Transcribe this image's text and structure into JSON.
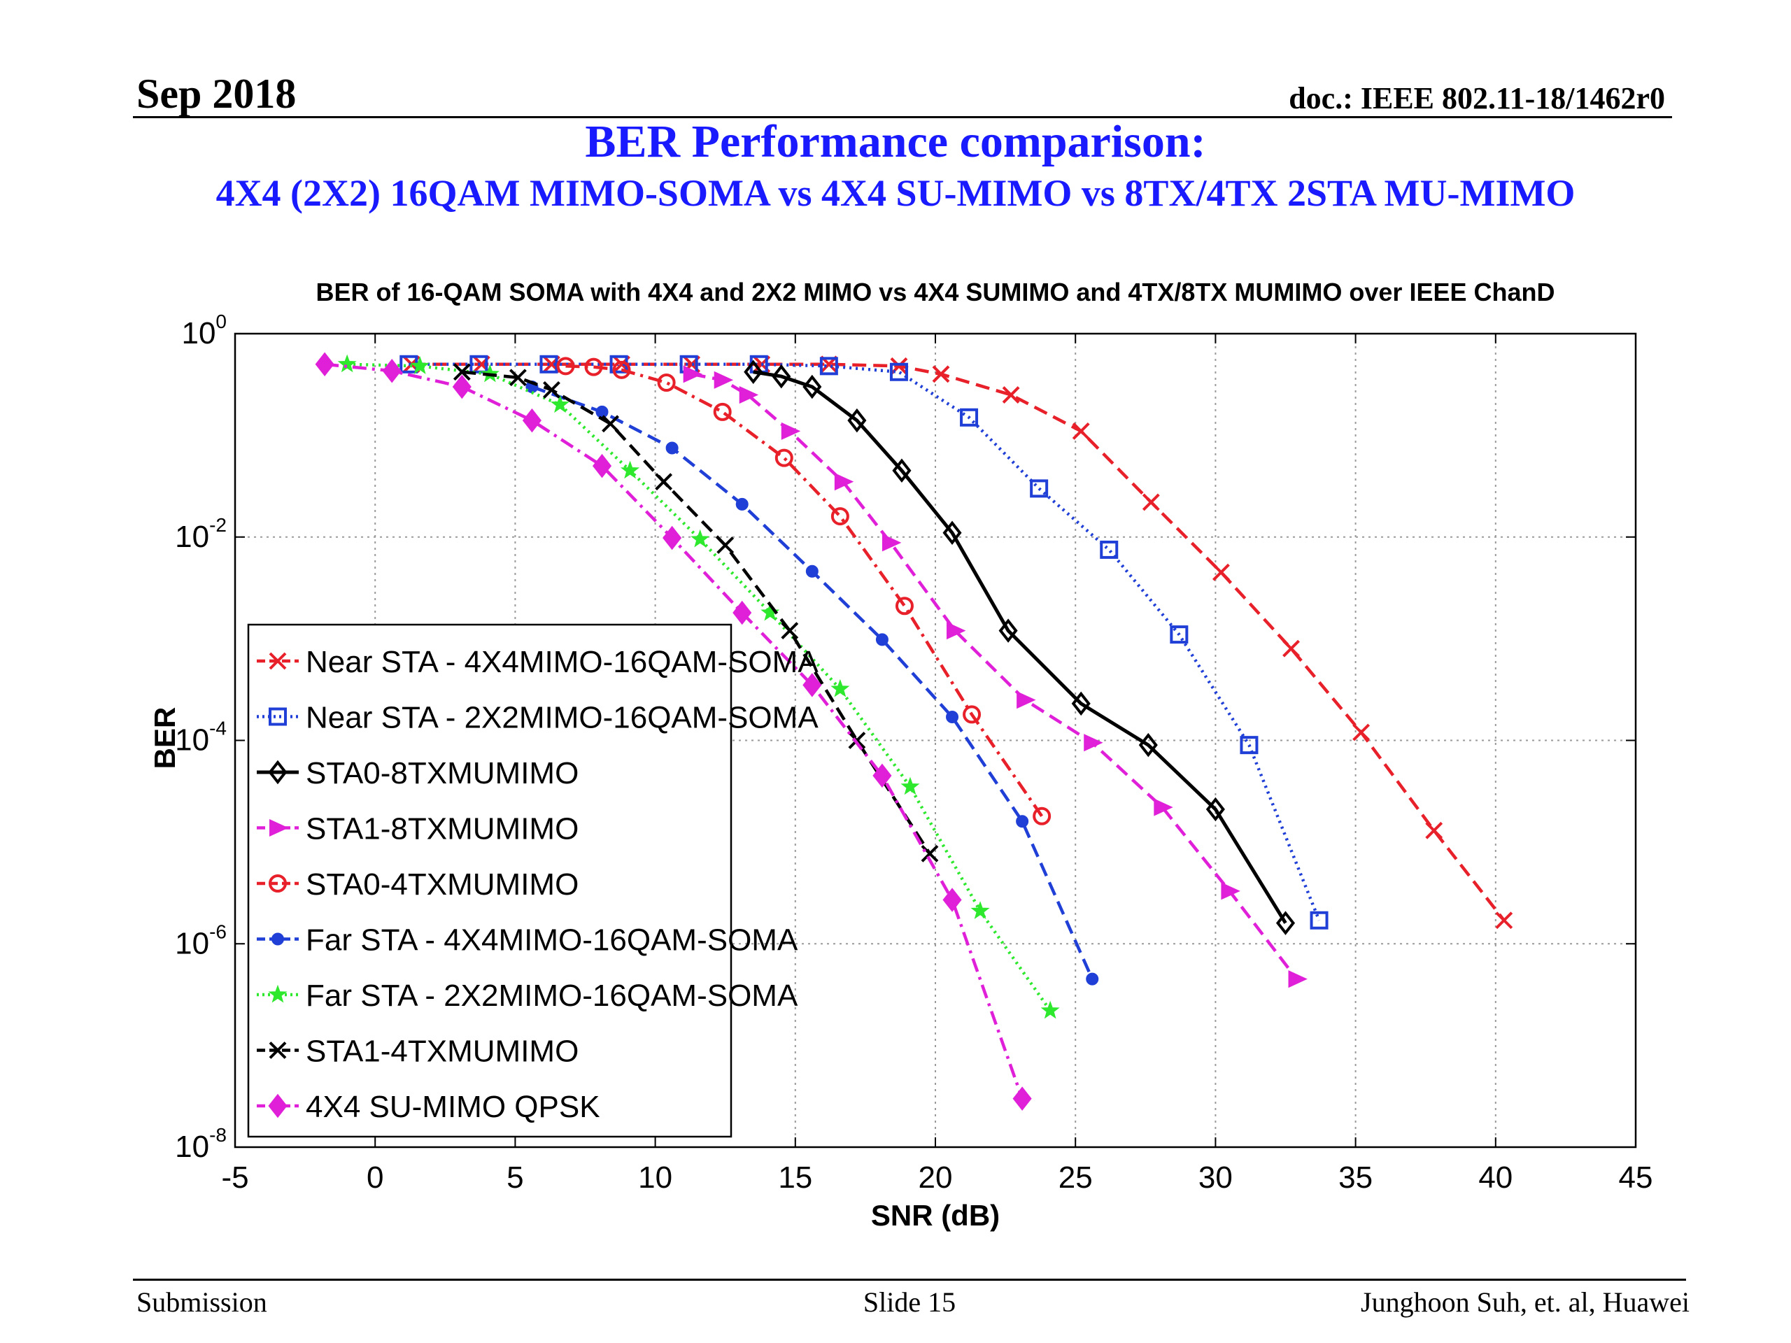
{
  "header": {
    "date": "Sep 2018",
    "doc": "doc.: IEEE 802.11-18/1462r0"
  },
  "slide": {
    "title": "BER Performance comparison:",
    "subtitle": "4X4 (2X2) 16QAM MIMO-SOMA vs 4X4 SU-MIMO vs 8TX/4TX 2STA MU-MIMO"
  },
  "footer": {
    "left": "Submission",
    "center": "Slide 15",
    "right": "Junghoon Suh, et. al, Huawei"
  },
  "chart_data": {
    "type": "line",
    "title": "BER of 16-QAM SOMA with 4X4 and 2X2 MIMO vs 4X4 SUMIMO and 4TX/8TX MUMIMO over IEEE ChanD",
    "xlabel": "SNR (dB)",
    "ylabel": "BER",
    "xlim": [
      -5,
      45
    ],
    "ylim": [
      1e-08,
      1
    ],
    "yscale": "log",
    "grid": true,
    "legend_position": "lower-left",
    "xticks": [
      "-5",
      "0",
      "5",
      "10",
      "15",
      "20",
      "25",
      "30",
      "35",
      "40",
      "45"
    ],
    "yticks": [
      {
        "base": "10",
        "exp": "0"
      },
      {
        "base": "10",
        "exp": "-2"
      },
      {
        "base": "10",
        "exp": "-4"
      },
      {
        "base": "10",
        "exp": "-6"
      },
      {
        "base": "10",
        "exp": "-8"
      }
    ],
    "series": [
      {
        "name": "Near STA - 4X4MIMO-16QAM-SOMA",
        "color": "#e8202a",
        "dash": "dashed",
        "marker": "x",
        "x": [
          1.3,
          3.8,
          6.3,
          8.8,
          11.3,
          13.8,
          16.2,
          18.7,
          20.2,
          22.7,
          25.2,
          27.7,
          30.2,
          32.7,
          35.2,
          37.8,
          40.3
        ],
        "y": [
          0.5,
          0.5,
          0.5,
          0.5,
          0.5,
          0.5,
          0.5,
          0.48,
          0.4,
          0.25,
          0.11,
          0.022,
          0.0045,
          0.0008,
          0.00012,
          1.3e-05,
          1.7e-06
        ]
      },
      {
        "name": "Near STA - 2X2MIMO-16QAM-SOMA",
        "color": "#1f3fd6",
        "dash": "dotted",
        "marker": "square",
        "x": [
          1.2,
          3.7,
          6.2,
          8.7,
          11.2,
          13.7,
          16.2,
          18.7,
          21.2,
          23.7,
          26.2,
          28.7,
          31.2,
          33.7
        ],
        "y": [
          0.5,
          0.5,
          0.5,
          0.5,
          0.5,
          0.5,
          0.48,
          0.42,
          0.15,
          0.03,
          0.0075,
          0.0011,
          9e-05,
          1.7e-06
        ]
      },
      {
        "name": "STA0-8TXMUMIMO",
        "color": "#000000",
        "dash": "solid",
        "marker": "diamond",
        "x": [
          13.5,
          14.5,
          15.6,
          17.2,
          18.8,
          20.6,
          22.6,
          25.2,
          27.6,
          30,
          32.5
        ],
        "y": [
          0.42,
          0.38,
          0.3,
          0.14,
          0.045,
          0.011,
          0.0012,
          0.00023,
          9e-05,
          2.1e-05,
          1.6e-06
        ]
      },
      {
        "name": "STA1-8TXMUMIMO",
        "color": "#e020d8",
        "dash": "dashed",
        "marker": "triangle-right",
        "x": [
          11.3,
          12.4,
          13.3,
          14.8,
          16.7,
          18.4,
          20.7,
          23.2,
          25.6,
          28.1,
          30.5,
          32.9
        ],
        "y": [
          0.4,
          0.35,
          0.25,
          0.11,
          0.035,
          0.0088,
          0.0012,
          0.00025,
          9.5e-05,
          2.2e-05,
          3.3e-06,
          4.5e-07
        ]
      },
      {
        "name": "STA0-4TXMUMIMO",
        "color": "#e8202a",
        "dash": "dashdot",
        "marker": "circle",
        "x": [
          6.8,
          7.8,
          8.8,
          10.4,
          12.4,
          14.6,
          16.6,
          18.9,
          21.3,
          23.8
        ],
        "y": [
          0.48,
          0.47,
          0.44,
          0.33,
          0.17,
          0.06,
          0.016,
          0.0021,
          0.00018,
          1.8e-05
        ]
      },
      {
        "name": "Far STA - 4X4MIMO-16QAM-SOMA",
        "color": "#1f3fd6",
        "dash": "dashed",
        "marker": "dot",
        "x": [
          5.6,
          8.1,
          10.6,
          13.1,
          15.6,
          18.1,
          20.6,
          23.1,
          25.6
        ],
        "y": [
          0.3,
          0.17,
          0.075,
          0.021,
          0.0046,
          0.00098,
          0.00017,
          1.6e-05,
          4.5e-07
        ]
      },
      {
        "name": "Far STA - 2X2MIMO-16QAM-SOMA",
        "color": "#2ee82e",
        "dash": "dotted",
        "marker": "star",
        "x": [
          -1,
          1.6,
          4.1,
          6.6,
          9.1,
          11.6,
          14.1,
          16.6,
          19.1,
          21.6,
          24.1
        ],
        "y": [
          0.5,
          0.48,
          0.4,
          0.2,
          0.045,
          0.0095,
          0.0018,
          0.00032,
          3.5e-05,
          2.1e-06,
          2.2e-07
        ]
      },
      {
        "name": "STA1-4TXMUMIMO",
        "color": "#000000",
        "dash": "dashed",
        "marker": "x",
        "x": [
          3.1,
          5.1,
          6.3,
          8.4,
          10.3,
          12.5,
          14.8,
          17.2,
          19.8
        ],
        "y": [
          0.42,
          0.37,
          0.28,
          0.13,
          0.035,
          0.0083,
          0.0012,
          0.0001,
          7.7e-06
        ]
      },
      {
        "name": "4X4 SU-MIMO QPSK",
        "color": "#e020d8",
        "dash": "dashdot",
        "marker": "diamond",
        "x": [
          -1.8,
          0.6,
          3.1,
          5.6,
          8.1,
          10.6,
          13.1,
          15.6,
          18.1,
          20.6,
          23.1
        ],
        "y": [
          0.5,
          0.43,
          0.3,
          0.14,
          0.05,
          0.0098,
          0.0018,
          0.00035,
          4.5e-05,
          2.7e-06,
          3e-08
        ]
      }
    ]
  }
}
